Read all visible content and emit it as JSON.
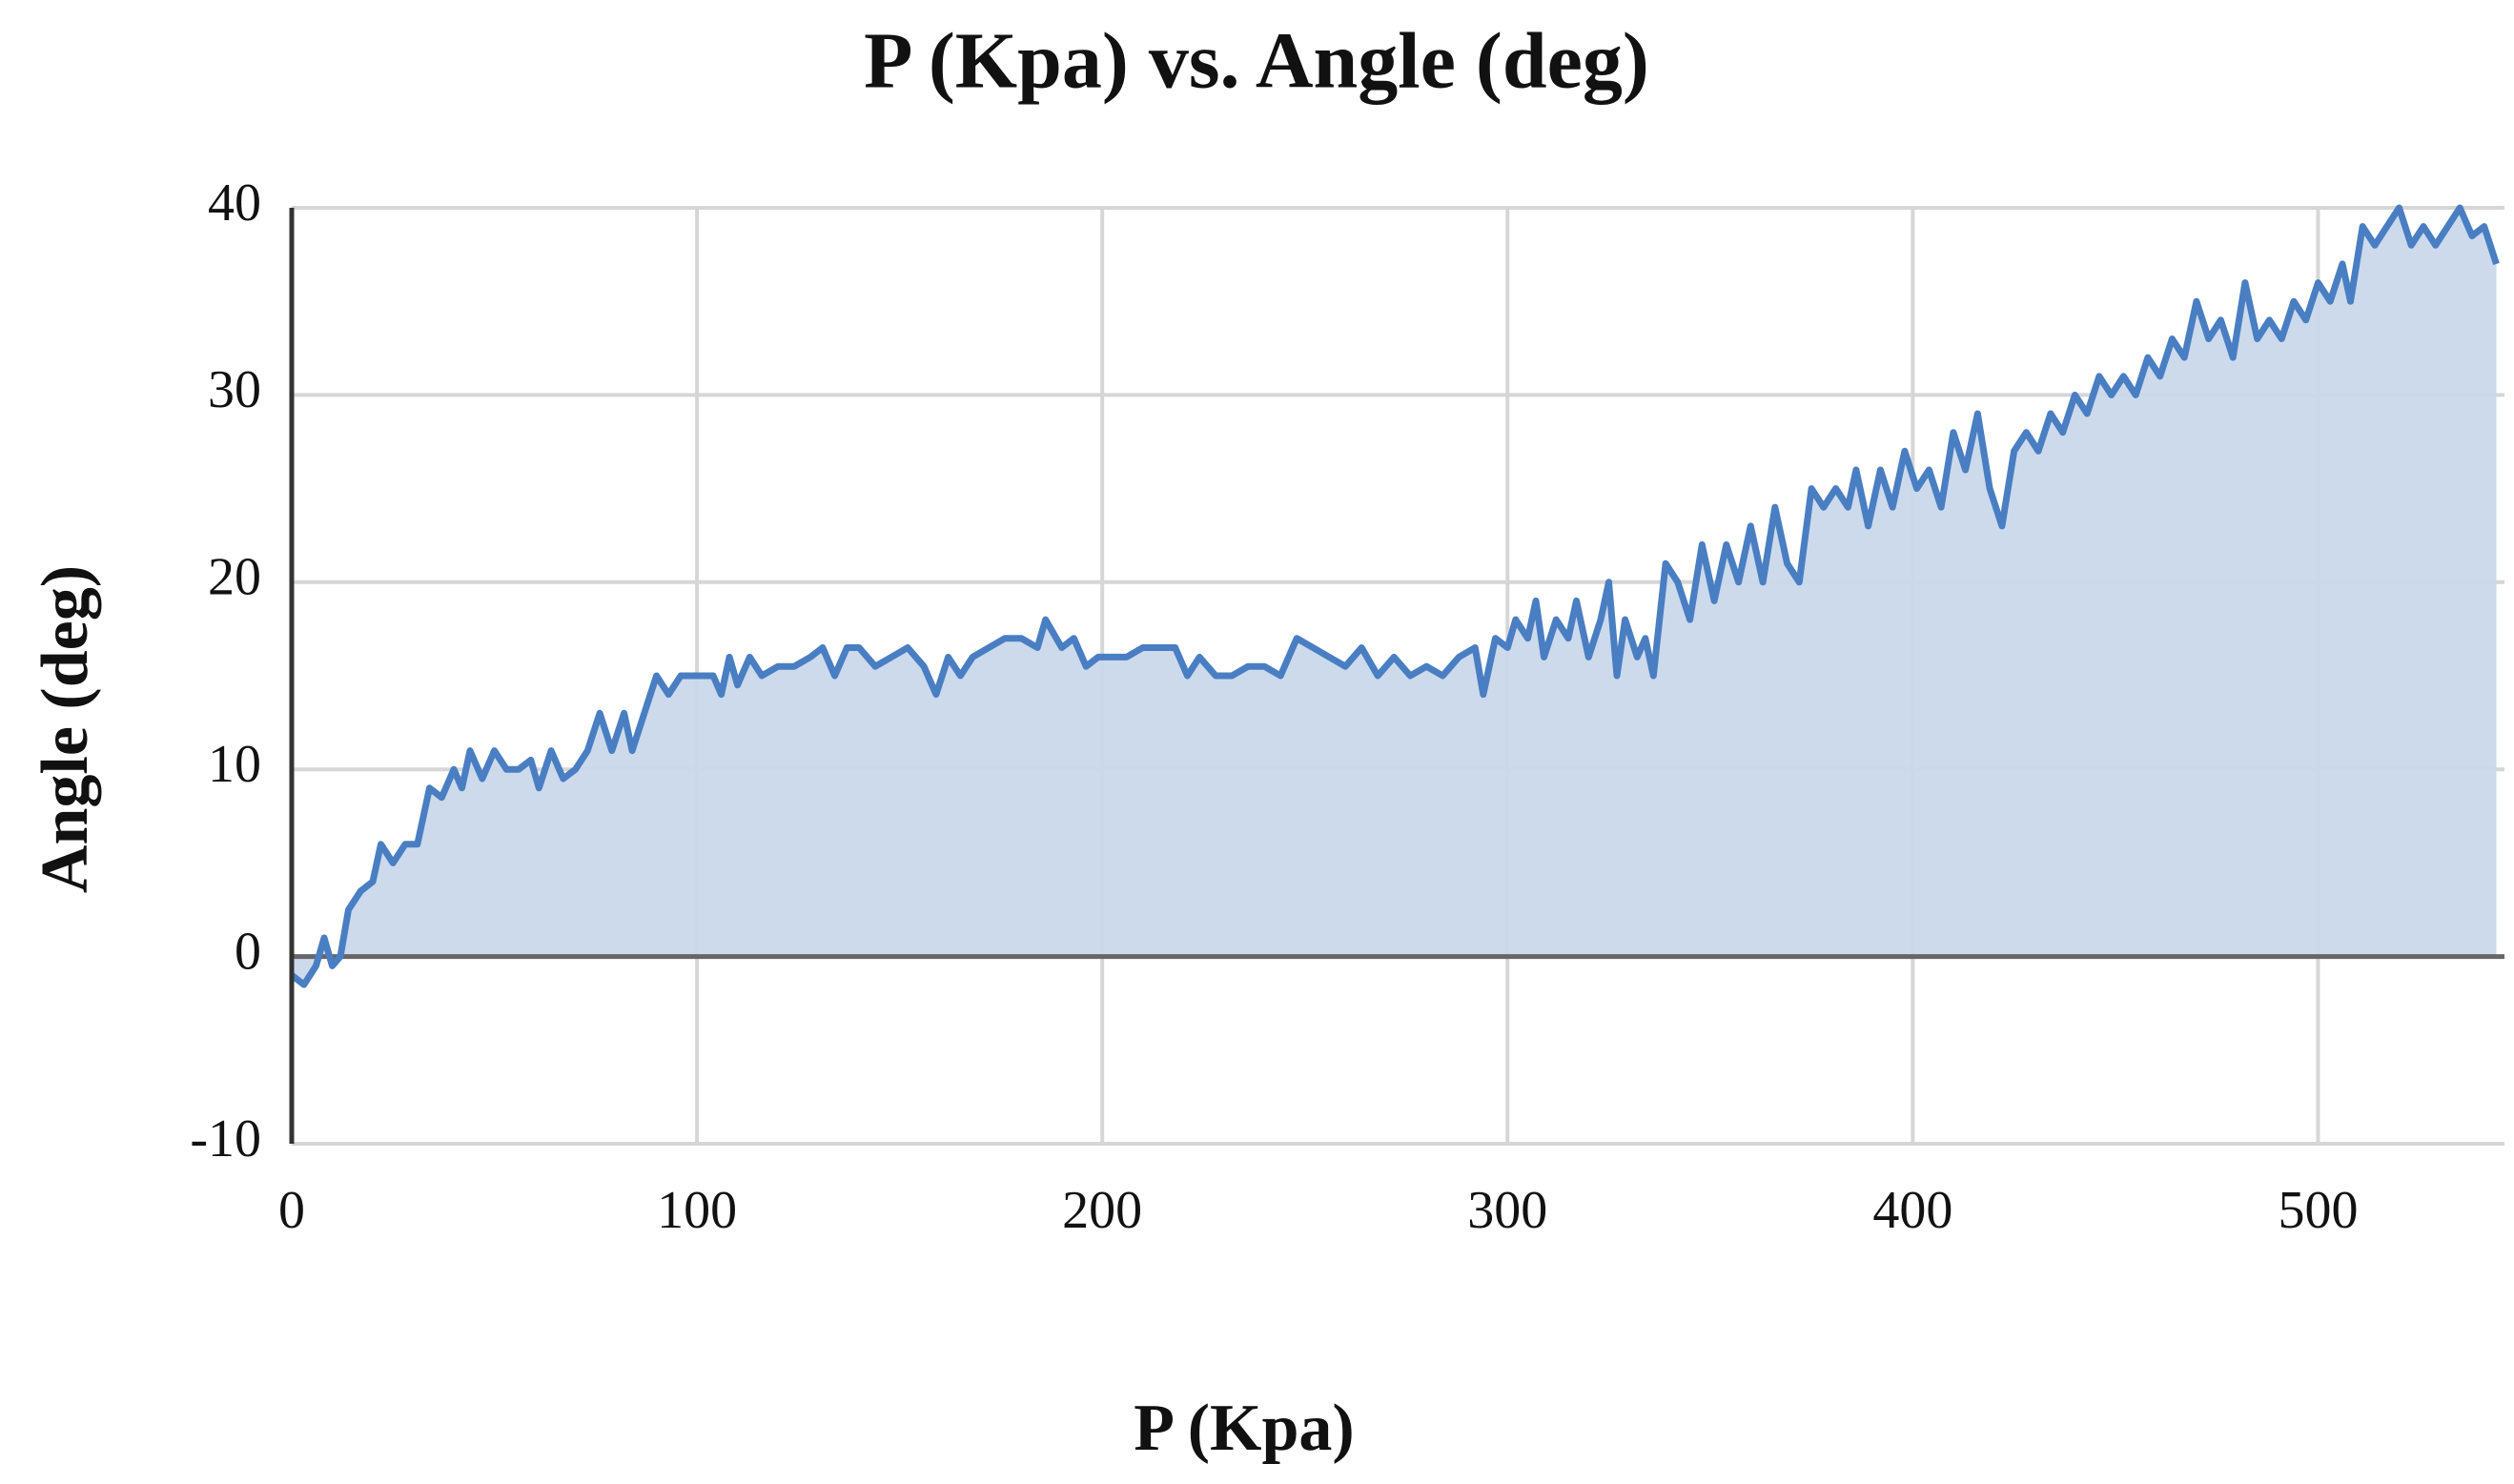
{
  "chart_data": {
    "type": "area",
    "title": "P (Kpa) vs. Angle (deg)",
    "x_label": "P (Kpa)",
    "y_label": "Angle (deg)",
    "x": [
      0,
      3,
      6,
      8,
      10,
      12,
      14,
      17,
      20,
      22,
      25,
      28,
      31,
      34,
      37,
      40,
      42,
      44,
      47,
      50,
      53,
      56,
      59,
      61,
      64,
      67,
      70,
      73,
      76,
      79,
      82,
      84,
      87,
      90,
      93,
      96,
      100,
      104,
      106,
      108,
      110,
      113,
      116,
      120,
      124,
      128,
      131,
      134,
      137,
      140,
      144,
      148,
      152,
      156,
      159,
      162,
      165,
      168,
      172,
      176,
      180,
      184,
      186,
      190,
      193,
      196,
      199,
      202,
      206,
      210,
      214,
      218,
      221,
      224,
      228,
      232,
      236,
      240,
      244,
      248,
      252,
      256,
      260,
      264,
      268,
      272,
      276,
      280,
      284,
      288,
      292,
      294,
      297,
      300,
      302,
      305,
      307,
      309,
      312,
      315,
      317,
      320,
      323,
      325,
      327,
      329,
      332,
      334,
      336,
      339,
      342,
      345,
      348,
      351,
      354,
      357,
      360,
      363,
      366,
      369,
      372,
      375,
      378,
      381,
      384,
      386,
      389,
      392,
      395,
      398,
      401,
      404,
      407,
      410,
      413,
      416,
      419,
      422,
      425,
      428,
      431,
      434,
      437,
      440,
      443,
      446,
      449,
      452,
      455,
      458,
      461,
      464,
      467,
      470,
      473,
      476,
      479,
      482,
      485,
      488,
      491,
      494,
      497,
      500,
      503,
      506,
      508,
      511,
      514,
      517,
      520,
      523,
      526,
      529,
      532,
      535,
      538,
      541,
      544
    ],
    "series": [
      {
        "name": "Angle (deg)",
        "color": "#4a7ec2",
        "fill": "#c9d8eb",
        "values": [
          -1,
          -1.5,
          -0.5,
          1,
          -0.5,
          0,
          2.5,
          3.5,
          4,
          6,
          5,
          6,
          6,
          9,
          8.5,
          10,
          9,
          11,
          9.5,
          11,
          10,
          10,
          10.5,
          9,
          11,
          9.5,
          10,
          11,
          13,
          11,
          13,
          11,
          13,
          15,
          14,
          15,
          15,
          15,
          14,
          16,
          14.5,
          16,
          15,
          15.5,
          15.5,
          16,
          16.5,
          15,
          16.5,
          16.5,
          15.5,
          16,
          16.5,
          15.5,
          14,
          16,
          15,
          16,
          16.5,
          17,
          17,
          16.5,
          18,
          16.5,
          17,
          15.5,
          16,
          16,
          16,
          16.5,
          16.5,
          16.5,
          15,
          16,
          15,
          15,
          15.5,
          15.5,
          15,
          17,
          16.5,
          16,
          15.5,
          16.5,
          15,
          16,
          15,
          15.5,
          15,
          16,
          16.5,
          14,
          17,
          16.5,
          18,
          17,
          19,
          16,
          18,
          17,
          19,
          16,
          18,
          20,
          15,
          18,
          16,
          17,
          15,
          21,
          20,
          18,
          22,
          19,
          22,
          20,
          23,
          20,
          24,
          21,
          20,
          25,
          24,
          25,
          24,
          26,
          23,
          26,
          24,
          27,
          25,
          26,
          24,
          28,
          26,
          29,
          25,
          23,
          27,
          28,
          27,
          29,
          28,
          30,
          29,
          31,
          30,
          31,
          30,
          32,
          31,
          33,
          32,
          35,
          33,
          34,
          32,
          36,
          33,
          34,
          33,
          35,
          34,
          36,
          35,
          37,
          35,
          39,
          38,
          39,
          40,
          38,
          39,
          38,
          39,
          40,
          38.5,
          39,
          37
        ]
      }
    ],
    "xlim": [
      0,
      546
    ],
    "xticks": [
      0,
      100,
      200,
      300,
      400,
      500
    ],
    "ylim": [
      -10,
      40
    ],
    "yticks": [
      -10,
      0,
      10,
      20,
      30,
      40
    ],
    "grid": true
  }
}
